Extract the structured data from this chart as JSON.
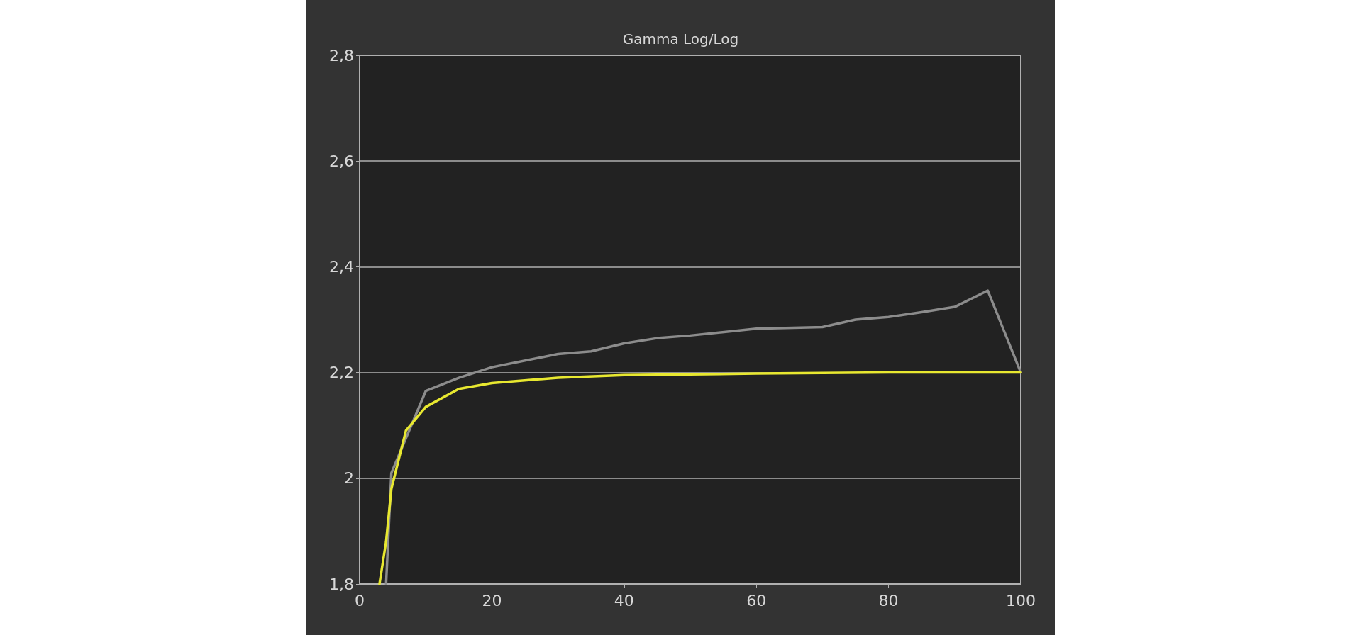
{
  "chart_data": {
    "type": "line",
    "title": "Gamma Log/Log",
    "series": [
      {
        "color": "#8c8c8c",
        "x": [
          4,
          4.8,
          10,
          15,
          20,
          30,
          35,
          40,
          45,
          50,
          60,
          70,
          75,
          80,
          85,
          90,
          95,
          100
        ],
        "values": [
          1.8,
          2.01,
          2.165,
          2.19,
          2.21,
          2.235,
          2.24,
          2.255,
          2.265,
          2.27,
          2.283,
          2.286,
          2.3,
          2.305,
          2.314,
          2.324,
          2.355,
          2.2
        ]
      },
      {
        "color": "#e8e830",
        "x": [
          3,
          4,
          4.8,
          7,
          10,
          15,
          20,
          30,
          40,
          60,
          80,
          100
        ],
        "values": [
          1.8,
          1.88,
          1.98,
          2.09,
          2.135,
          2.169,
          2.18,
          2.19,
          2.195,
          2.198,
          2.2,
          2.2
        ]
      }
    ],
    "xlim": [
      0,
      100
    ],
    "xticks": [
      0,
      20,
      40,
      60,
      80,
      100
    ],
    "ylim": [
      1.8,
      2.8
    ],
    "yticks": [
      {
        "value": 1.8,
        "label": "1,8"
      },
      2,
      {
        "value": 2.2,
        "label": "2,2"
      },
      {
        "value": 2.4,
        "label": "2,4"
      },
      {
        "value": 2.6,
        "label": "2,6"
      },
      {
        "value": 2.8,
        "label": "2,8"
      }
    ],
    "grid": "y",
    "marker": "none",
    "line_style": "solid"
  }
}
